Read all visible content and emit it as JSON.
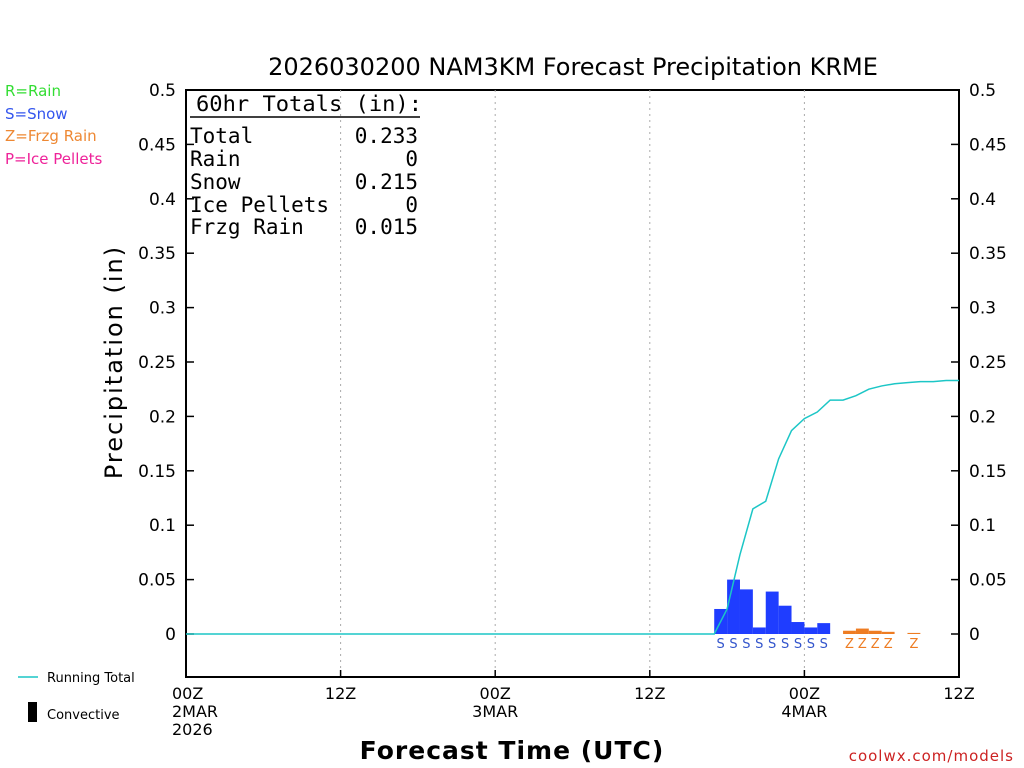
{
  "chart_data": {
    "type": "bar",
    "title": "2026030200 NAM3KM Forecast Precipitation KRME",
    "xlabel": "Forecast Time (UTC)",
    "ylabel": "Precipitation (in)",
    "ylim": [
      -0.04,
      0.5
    ],
    "xlim_hours": [
      0,
      60
    ],
    "y_ticks": [
      {
        "value": 0,
        "label": "0"
      },
      {
        "value": 0.05,
        "label": "0.05"
      },
      {
        "value": 0.1,
        "label": "0.1"
      },
      {
        "value": 0.15,
        "label": "0.15"
      },
      {
        "value": 0.2,
        "label": "0.2"
      },
      {
        "value": 0.25,
        "label": "0.25"
      },
      {
        "value": 0.3,
        "label": "0.3"
      },
      {
        "value": 0.35,
        "label": "0.35"
      },
      {
        "value": 0.4,
        "label": "0.4"
      },
      {
        "value": 0.45,
        "label": "0.45"
      },
      {
        "value": 0.5,
        "label": "0.5"
      }
    ],
    "x_ticks": [
      {
        "hour": 0,
        "lines": [
          "00Z",
          "2MAR",
          "2026"
        ]
      },
      {
        "hour": 12,
        "lines": [
          "12Z"
        ]
      },
      {
        "hour": 24,
        "lines": [
          "00Z",
          "3MAR"
        ]
      },
      {
        "hour": 36,
        "lines": [
          "12Z"
        ]
      },
      {
        "hour": 48,
        "lines": [
          "00Z",
          "4MAR"
        ]
      },
      {
        "hour": 60,
        "lines": [
          "12Z"
        ]
      }
    ],
    "grid_hours": [
      12,
      24,
      36,
      48
    ],
    "bars": [
      {
        "hour": 42,
        "value": 0.023,
        "type": "snow"
      },
      {
        "hour": 43,
        "value": 0.05,
        "type": "snow"
      },
      {
        "hour": 44,
        "value": 0.041,
        "type": "snow"
      },
      {
        "hour": 45,
        "value": 0.006,
        "type": "snow"
      },
      {
        "hour": 46,
        "value": 0.039,
        "type": "snow"
      },
      {
        "hour": 47,
        "value": 0.026,
        "type": "snow"
      },
      {
        "hour": 48,
        "value": 0.011,
        "type": "snow"
      },
      {
        "hour": 49,
        "value": 0.006,
        "type": "snow"
      },
      {
        "hour": 50,
        "value": 0.01,
        "type": "snow"
      },
      {
        "hour": 52,
        "value": 0.003,
        "type": "frzg"
      },
      {
        "hour": 53,
        "value": 0.005,
        "type": "frzg"
      },
      {
        "hour": 54,
        "value": 0.003,
        "type": "frzg"
      },
      {
        "hour": 55,
        "value": 0.002,
        "type": "frzg"
      },
      {
        "hour": 57,
        "value": 0.001,
        "type": "frzg"
      }
    ],
    "series": [
      {
        "name": "Running Total",
        "points": [
          [
            0,
            0
          ],
          [
            41,
            0
          ],
          [
            42,
            0.023
          ],
          [
            43,
            0.073
          ],
          [
            44,
            0.115
          ],
          [
            45,
            0.122
          ],
          [
            46,
            0.161
          ],
          [
            47,
            0.187
          ],
          [
            48,
            0.198
          ],
          [
            49,
            0.204
          ],
          [
            50,
            0.215
          ],
          [
            51,
            0.215
          ],
          [
            52,
            0.219
          ],
          [
            53,
            0.225
          ],
          [
            54,
            0.228
          ],
          [
            55,
            0.23
          ],
          [
            56,
            0.231
          ],
          [
            57,
            0.232
          ],
          [
            58,
            0.232
          ],
          [
            59,
            0.233
          ],
          [
            60,
            0.233
          ]
        ]
      }
    ],
    "type_markers": [
      {
        "hour": 42,
        "letter": "S",
        "type": "snow"
      },
      {
        "hour": 43,
        "letter": "S",
        "type": "snow"
      },
      {
        "hour": 44,
        "letter": "S",
        "type": "snow"
      },
      {
        "hour": 45,
        "letter": "S",
        "type": "snow"
      },
      {
        "hour": 46,
        "letter": "S",
        "type": "snow"
      },
      {
        "hour": 47,
        "letter": "S",
        "type": "snow"
      },
      {
        "hour": 48,
        "letter": "S",
        "type": "snow"
      },
      {
        "hour": 49,
        "letter": "S",
        "type": "snow"
      },
      {
        "hour": 50,
        "letter": "S",
        "type": "snow"
      },
      {
        "hour": 52,
        "letter": "Z",
        "type": "frzg"
      },
      {
        "hour": 53,
        "letter": "Z",
        "type": "frzg"
      },
      {
        "hour": 54,
        "letter": "Z",
        "type": "frzg"
      },
      {
        "hour": 55,
        "letter": "Z",
        "type": "frzg"
      },
      {
        "hour": 57,
        "letter": "Z",
        "type": "frzg"
      }
    ]
  },
  "totals": {
    "heading": "60hr Totals (in):",
    "rows": [
      {
        "label": "Total",
        "value": "0.233"
      },
      {
        "label": "Rain",
        "value": "0"
      },
      {
        "label": "Snow",
        "value": "0.215"
      },
      {
        "label": "Ice Pellets",
        "value": "0"
      },
      {
        "label": "Frzg Rain",
        "value": "0.015"
      }
    ]
  },
  "type_legend": [
    {
      "text": "R=Rain",
      "color": "#33dd33"
    },
    {
      "text": "S=Snow",
      "color": "#3355ee"
    },
    {
      "text": "Z=Frzg Rain",
      "color": "#ee8833"
    },
    {
      "text": "P=Ice Pellets",
      "color": "#ee2299"
    }
  ],
  "bottom_legend": {
    "running_total": "Running Total",
    "convective": "Convective"
  },
  "colors": {
    "snow": "#1f3dff",
    "frzg": "#ee7c22",
    "running_total": "#1cc6c6",
    "grid": "#aaaaaa",
    "axis": "#000000",
    "snow_marker": "#3355cc",
    "frzg_marker": "#ee7c22"
  },
  "credit": "coolwx.com/models"
}
